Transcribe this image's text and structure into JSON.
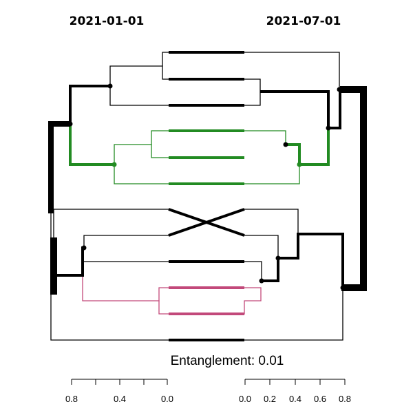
{
  "titles": {
    "left": "2021-01-01",
    "right": "2021-07-01"
  },
  "entanglement_label": "Entanglement: 0.01",
  "left_axis": {
    "ticks": [
      "0.8",
      "0.4",
      "0.0"
    ]
  },
  "right_axis": {
    "ticks": [
      "0.0",
      "0.2",
      "0.4",
      "0.6",
      "0.8"
    ]
  },
  "colors": {
    "black": "#000000",
    "green": "#228b22",
    "pink": "#c2497a"
  },
  "chart_data": {
    "type": "tanglegram",
    "leaf_count": 12,
    "left_height_axis": [
      0.8,
      0.4,
      0.0
    ],
    "right_height_axis": [
      0.0,
      0.2,
      0.4,
      0.6,
      0.8
    ],
    "entanglement": 0.01,
    "highlighted_clusters": [
      {
        "color": "green",
        "leaves": [
          5,
          6,
          7
        ]
      },
      {
        "color": "pink",
        "leaves": [
          11,
          12
        ]
      }
    ]
  }
}
